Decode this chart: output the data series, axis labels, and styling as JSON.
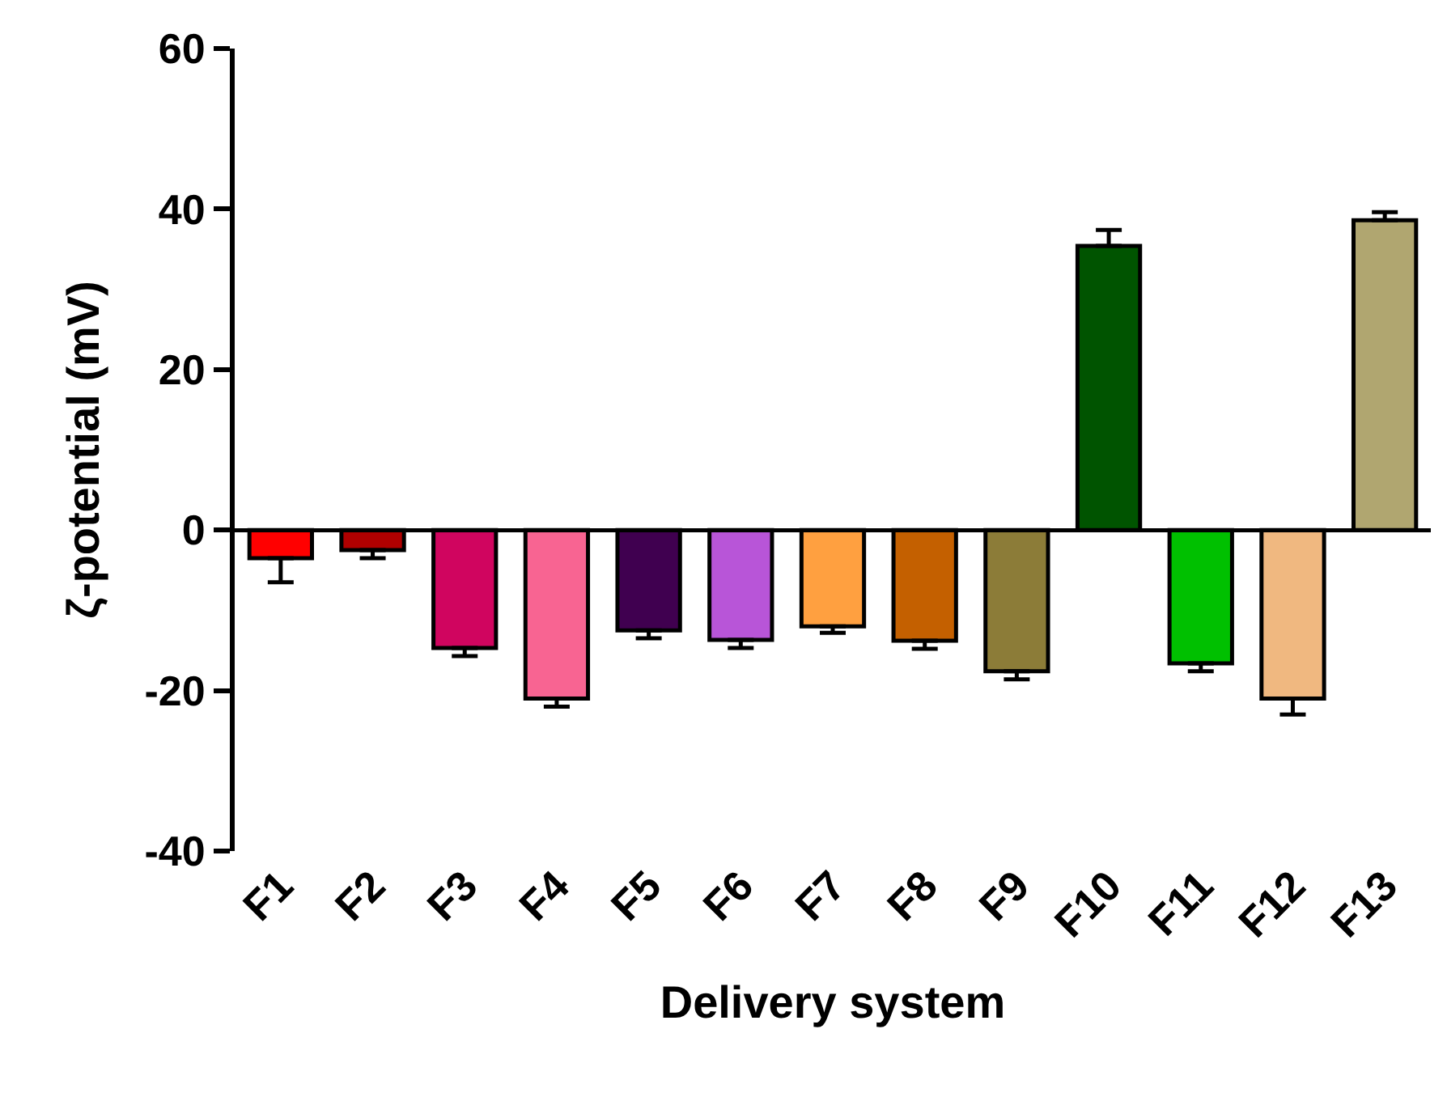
{
  "chart_data": {
    "type": "bar",
    "xlabel": "Delivery system",
    "ylabel": "ζ-potential (mV)",
    "categories": [
      "F1",
      "F2",
      "F3",
      "F4",
      "F5",
      "F6",
      "F7",
      "F8",
      "F9",
      "F10",
      "F11",
      "F12",
      "F13"
    ],
    "values": [
      -3.5,
      -2.5,
      -14.7,
      -21,
      -12.5,
      -13.7,
      -12,
      -13.8,
      -17.6,
      35.4,
      -16.6,
      -21,
      38.6
    ],
    "errors": [
      [
        -6.5,
        -3.5
      ],
      [
        -3.5,
        -2.5
      ],
      [
        -15.7,
        -14.7
      ],
      [
        -22,
        -21
      ],
      [
        -13.5,
        -12.5
      ],
      [
        -14.7,
        -13.7
      ],
      [
        -12.8,
        -12
      ],
      [
        -14.8,
        -13.8
      ],
      [
        -18.6,
        -17.6
      ],
      [
        35.4,
        37.4
      ],
      [
        -17.6,
        -16.6
      ],
      [
        -23,
        -21
      ],
      [
        38.6,
        39.6
      ]
    ],
    "colors": [
      "#ff0000",
      "#b00000",
      "#d0055f",
      "#f86492",
      "#400050",
      "#b855d8",
      "#ffa040",
      "#c46000",
      "#8c7c38",
      "#005400",
      "#00c000",
      "#f0b880",
      "#b0a670"
    ],
    "ylim": [
      -40,
      60
    ],
    "yticks": [
      -40,
      -20,
      0,
      20,
      40,
      60
    ],
    "legend": false
  }
}
